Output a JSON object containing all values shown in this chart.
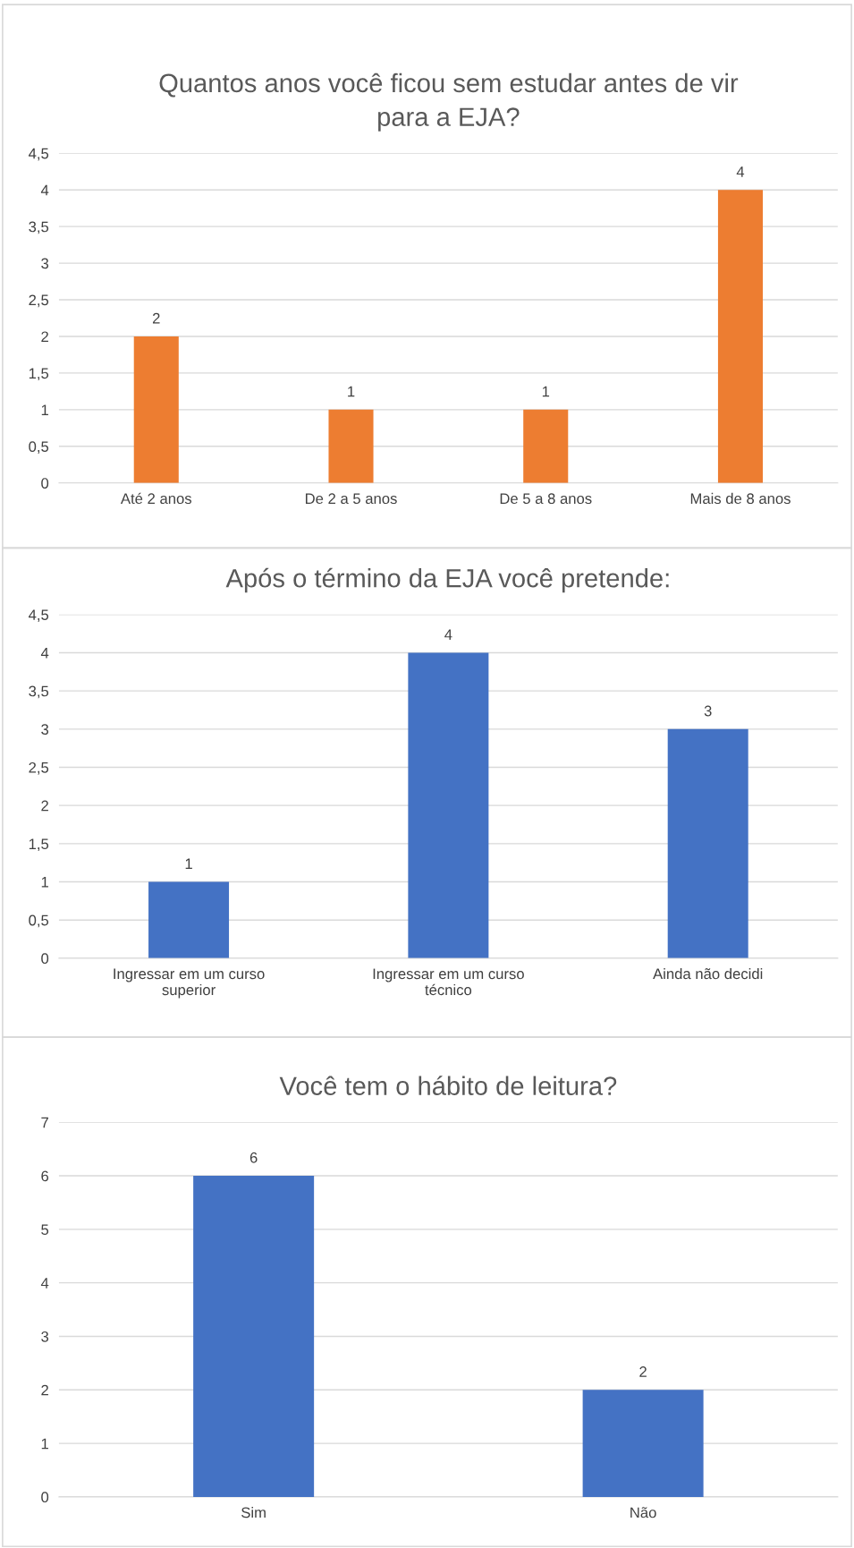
{
  "chart_data": [
    {
      "type": "bar",
      "title": "Quantos anos você ficou sem estudar antes de vir\npara a EJA?",
      "categories": [
        "Até 2 anos",
        "De 2 a 5 anos",
        "De 5 a 8 anos",
        "Mais de 8 anos"
      ],
      "values": [
        2,
        1,
        1,
        4
      ],
      "color": "#ed7d31",
      "ylim": [
        0,
        4.5
      ],
      "yticks": [
        0,
        {
          "value": 0.5,
          "label": "0,5"
        },
        1,
        {
          "value": 1.5,
          "label": "1,5"
        },
        2,
        {
          "value": 2.5,
          "label": "2,5"
        },
        3,
        {
          "value": 3.5,
          "label": "3,5"
        },
        4,
        {
          "value": 4.5,
          "label": "4,5"
        }
      ],
      "grid": "y",
      "data_labels": true
    },
    {
      "type": "bar",
      "title": "Após o término da EJA você pretende:",
      "categories": [
        "Ingressar em um curso\nsuperior",
        "Ingressar em um curso\ntécnico",
        "Ainda não decidi"
      ],
      "values": [
        1,
        4,
        3
      ],
      "color": "#4472c4",
      "ylim": [
        0,
        4.5
      ],
      "yticks": [
        0,
        {
          "value": 0.5,
          "label": "0,5"
        },
        1,
        {
          "value": 1.5,
          "label": "1,5"
        },
        2,
        {
          "value": 2.5,
          "label": "2,5"
        },
        3,
        {
          "value": 3.5,
          "label": "3,5"
        },
        4,
        {
          "value": 4.5,
          "label": "4,5"
        }
      ],
      "grid": "y",
      "data_labels": true
    },
    {
      "type": "bar",
      "title": "Você tem o hábito de leitura?",
      "categories": [
        "Sim",
        "Não"
      ],
      "values": [
        6,
        2
      ],
      "color": "#4472c4",
      "ylim": [
        0,
        7
      ],
      "yticks": [
        0,
        1,
        2,
        3,
        4,
        5,
        6,
        7
      ],
      "grid": "y",
      "data_labels": true
    }
  ]
}
